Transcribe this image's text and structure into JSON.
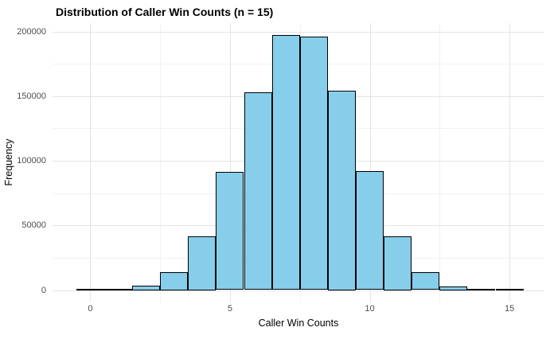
{
  "chart_data": {
    "type": "bar",
    "subtype": "histogram",
    "title": "Distribution of Caller Win Counts (n = 15)",
    "xlabel": "Caller Win Counts",
    "ylabel": "Frequency",
    "x": [
      0,
      1,
      2,
      3,
      4,
      5,
      6,
      7,
      8,
      9,
      10,
      11,
      12,
      13,
      14,
      15
    ],
    "values": [
      30,
      460,
      3300,
      14000,
      41700,
      91600,
      153200,
      197000,
      196200,
      154000,
      92200,
      41400,
      13800,
      3100,
      460,
      30
    ],
    "bin_width": 1,
    "xlim": [
      -1.35,
      16.25
    ],
    "ylim": [
      -9500,
      206500
    ],
    "x_major_ticks": [
      0,
      5,
      10,
      15
    ],
    "x_tick_labels": [
      "0",
      "5",
      "10",
      "15"
    ],
    "x_minor_ticks": [
      2.5,
      7.5,
      12.5
    ],
    "y_major_ticks": [
      0,
      50000,
      100000,
      150000,
      200000
    ],
    "y_tick_labels": [
      "0",
      "50000",
      "100000",
      "150000",
      "200000"
    ],
    "y_minor_ticks": [
      25000,
      75000,
      125000,
      175000
    ],
    "grid": true,
    "legend": "none",
    "colors": {
      "bar_fill": "#87CEEB",
      "bar_border": "#000000",
      "grid_major": "#e4e4e4",
      "grid_minor": "#f2f2f2",
      "axis_text": "#4d4d4d",
      "title_text": "#000000",
      "background": "#ffffff"
    }
  }
}
